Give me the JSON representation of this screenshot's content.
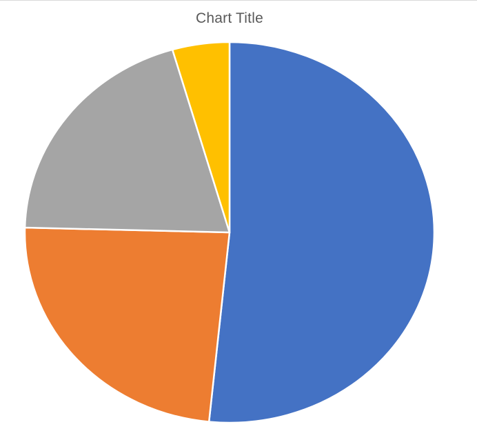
{
  "chart_data": {
    "type": "pie",
    "title": "Chart Title",
    "start_angle_deg": 0,
    "direction": "clockwise",
    "series": [
      {
        "values": [
          51.6,
          23.8,
          20.1,
          4.5
        ],
        "colors": [
          "#4472c4",
          "#ed7d31",
          "#a5a5a5",
          "#ffc000"
        ]
      }
    ],
    "legend": "none",
    "data_labels": "none"
  }
}
